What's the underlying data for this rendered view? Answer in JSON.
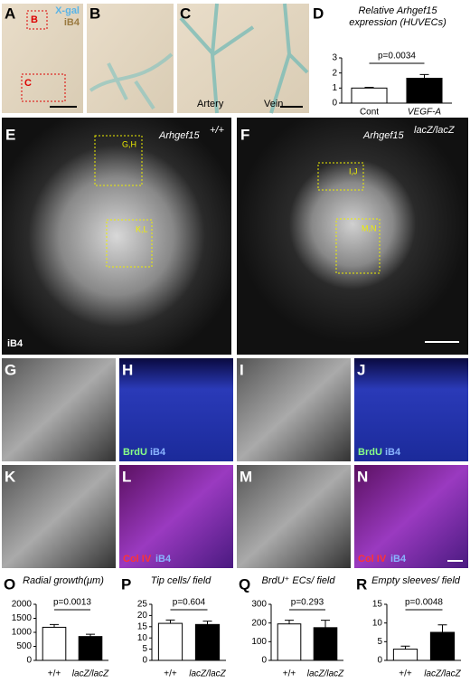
{
  "panels": {
    "A": {
      "letter": "A",
      "box_b": "B",
      "box_c": "C",
      "stain1": "X-gal",
      "stain2": "iB4"
    },
    "B": {
      "letter": "B"
    },
    "C": {
      "letter": "C",
      "artery": "Artery",
      "vein": "Vein"
    },
    "E": {
      "letter": "E",
      "gene": "Arhgef15",
      "genotype": "+/+",
      "box1": "G,H",
      "box2": "K,L",
      "stain": "iB4"
    },
    "F": {
      "letter": "F",
      "gene": "Arhgef15",
      "genotype": "lacZ/lacZ",
      "box1": "I,J",
      "box2": "M,N"
    },
    "G": {
      "letter": "G"
    },
    "H": {
      "letter": "H",
      "stain1": "BrdU",
      "stain2": "iB4"
    },
    "I": {
      "letter": "I"
    },
    "J": {
      "letter": "J",
      "stain1": "BrdU",
      "stain2": "iB4"
    },
    "K": {
      "letter": "K"
    },
    "L": {
      "letter": "L",
      "stain1": "Col IV",
      "stain2": "iB4"
    },
    "M": {
      "letter": "M"
    },
    "N": {
      "letter": "N",
      "stain1": "Col IV",
      "stain2": "iB4"
    }
  },
  "chart_data": [
    {
      "type": "bar",
      "letter": "D",
      "title": [
        "Relative Arhgef15",
        "expression (HUVECs)"
      ],
      "categories": [
        "Cont",
        "VEGF-A"
      ],
      "values": [
        1.0,
        1.65
      ],
      "errors": [
        0.05,
        0.25
      ],
      "colors": [
        "#ffffff",
        "#000000"
      ],
      "annotation": "p=0.0034",
      "ylim": [
        0,
        3
      ],
      "yticks": [
        0,
        1,
        2,
        3
      ]
    },
    {
      "type": "bar",
      "letter": "O",
      "title": [
        "Radial growth(μm)"
      ],
      "categories": [
        "+/+",
        "lacZ/lacZ"
      ],
      "values": [
        1180,
        850
      ],
      "errors": [
        100,
        80
      ],
      "colors": [
        "#ffffff",
        "#000000"
      ],
      "annotation": "p=0.0013",
      "ylim": [
        0,
        2000
      ],
      "yticks": [
        0,
        500,
        1000,
        1500,
        2000
      ]
    },
    {
      "type": "bar",
      "letter": "P",
      "title": [
        "Tip cells/ field"
      ],
      "categories": [
        "+/+",
        "lacZ/lacZ"
      ],
      "values": [
        16.5,
        16
      ],
      "errors": [
        1.5,
        1.5
      ],
      "colors": [
        "#ffffff",
        "#000000"
      ],
      "annotation": "p=0.604",
      "ylim": [
        0,
        25
      ],
      "yticks": [
        0,
        5,
        10,
        15,
        20,
        25
      ]
    },
    {
      "type": "bar",
      "letter": "Q",
      "title": [
        "BrdU⁺ ECs/ field"
      ],
      "categories": [
        "+/+",
        "lacZ/lacZ"
      ],
      "values": [
        195,
        175
      ],
      "errors": [
        20,
        40
      ],
      "colors": [
        "#ffffff",
        "#000000"
      ],
      "annotation": "p=0.293",
      "ylim": [
        0,
        300
      ],
      "yticks": [
        0,
        100,
        200,
        300
      ]
    },
    {
      "type": "bar",
      "letter": "R",
      "title": [
        "Empty sleeves/ field"
      ],
      "categories": [
        "+/+",
        "lacZ/lacZ"
      ],
      "values": [
        3,
        7.5
      ],
      "errors": [
        0.8,
        2
      ],
      "colors": [
        "#ffffff",
        "#000000"
      ],
      "annotation": "p=0.0048",
      "ylim": [
        0,
        15
      ],
      "yticks": [
        0,
        5,
        10,
        15
      ]
    }
  ]
}
